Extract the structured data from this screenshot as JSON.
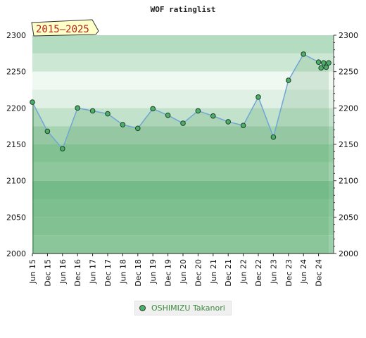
{
  "chart_data": {
    "type": "line",
    "title": "WOF ratinglist",
    "period_badge": "2015–2025",
    "xlabel": "",
    "ylabel": "",
    "ylim": [
      2000,
      2300
    ],
    "yticks": [
      2000,
      2050,
      2100,
      2150,
      2200,
      2250,
      2300
    ],
    "xticks": [
      "Jun 15",
      "Dec 15",
      "Jun 16",
      "Dec 16",
      "Jun 17",
      "Dec 17",
      "Jun 18",
      "Dec 18",
      "Jun 19",
      "Dec 19",
      "Jun 20",
      "Dec 20",
      "Jun 21",
      "Dec 21",
      "Jun 22",
      "Dec 22",
      "Jun 23",
      "Dec 23",
      "Jun 24",
      "Dec 24"
    ],
    "grid": true,
    "legend_position": "bottom-center",
    "series": [
      {
        "name": "OSHIMIZU Takanori",
        "color": "#4caf6a",
        "line_color": "#6fa6d6",
        "points": [
          {
            "x": "Jun 15",
            "y": 2208
          },
          {
            "x": "Dec 15",
            "y": 2168
          },
          {
            "x": "Jun 16",
            "y": 2144
          },
          {
            "x": "Dec 16",
            "y": 2200
          },
          {
            "x": "Jun 17",
            "y": 2196
          },
          {
            "x": "Dec 17",
            "y": 2192
          },
          {
            "x": "Jun 18",
            "y": 2177
          },
          {
            "x": "Dec 18",
            "y": 2172
          },
          {
            "x": "Jun 19",
            "y": 2199
          },
          {
            "x": "Dec 19",
            "y": 2190
          },
          {
            "x": "Jun 20",
            "y": 2179
          },
          {
            "x": "Dec 20",
            "y": 2196
          },
          {
            "x": "Jun 21",
            "y": 2189
          },
          {
            "x": "Dec 21",
            "y": 2181
          },
          {
            "x": "Jun 22",
            "y": 2176
          },
          {
            "x": "Dec 22",
            "y": 2215
          },
          {
            "x": "Jun 23",
            "y": 2160
          },
          {
            "x": "Dec 23",
            "y": 2238
          },
          {
            "x": "Jun 24",
            "y": 2274
          },
          {
            "x": "Dec 24",
            "y": 2263
          },
          {
            "x": "Jan 25",
            "y": 2255
          },
          {
            "x": "Feb 25",
            "y": 2262
          },
          {
            "x": "Mar 25",
            "y": 2256
          },
          {
            "x": "Apr 25",
            "y": 2262
          }
        ]
      }
    ]
  }
}
